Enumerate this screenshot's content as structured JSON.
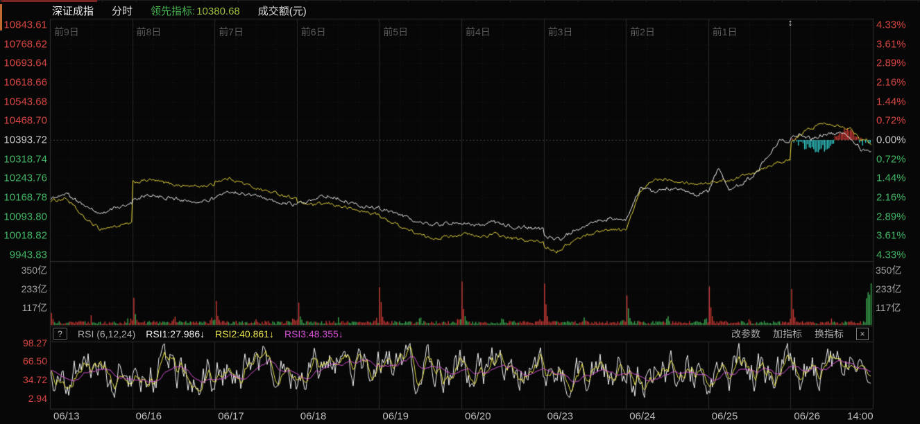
{
  "title_bar": {
    "index_name": "深证成指",
    "mode_tab": "分时",
    "leading_label": "领先指标:",
    "leading_value": "10380.68",
    "turnover_label": "成交额(元)"
  },
  "main_axis": {
    "left_prices": [
      "10843.61",
      "10768.62",
      "10693.64",
      "10618.66",
      "10543.68",
      "10468.70",
      "10393.72",
      "10318.74",
      "10243.76",
      "10168.78",
      "10093.80",
      "10018.82",
      "9943.83"
    ],
    "right_pcts": [
      "4.33%",
      "3.61%",
      "2.89%",
      "2.16%",
      "1.44%",
      "0.72%",
      "0.00%",
      "0.72%",
      "1.44%",
      "2.16%",
      "2.89%",
      "3.61%",
      "4.33%"
    ],
    "day_labels": [
      "前9日",
      "前8日",
      "前7日",
      "前6日",
      "前5日",
      "前4日",
      "前3日",
      "前2日",
      "前1日"
    ],
    "today_marker": "↕"
  },
  "volume_axis": {
    "levels": [
      "350亿",
      "233亿",
      "117亿"
    ]
  },
  "rsi_panel": {
    "help": "?",
    "name": "RSI (6,12,24)",
    "rsi1_label": "RSI1:27.986↓",
    "rsi2_label": "RSI2:40.861↓",
    "rsi3_label": "RSI3:48.355↓",
    "action_change_params": "改参数",
    "action_add_indicator": "加指标",
    "action_switch_indicator": "换指标",
    "close": "×",
    "levels": [
      "98.27",
      "66.50",
      "34.72",
      "2.94"
    ]
  },
  "x_axis": {
    "labels": [
      "06/13",
      "06/16",
      "06/17",
      "06/18",
      "06/19",
      "06/20",
      "06/23",
      "06/24",
      "06/25",
      "06/26",
      "14:00"
    ]
  },
  "colors": {
    "up_red": "#d64541",
    "down_green": "#42b564",
    "flat_white": "#c8c8c8",
    "white_line": "#f6f6f6",
    "yellow_line": "#f0df3e",
    "hist_red": "#e0413b",
    "hist_cyan": "#35d8d8",
    "vol_red": "#cf3b36",
    "vol_green": "#3cab50",
    "rsi1": "#f5f5f5",
    "rsi2": "#e9e34a",
    "rsi3": "#d44fd4",
    "accent_top": "#7c2421",
    "accent_left": "#c06a30"
  },
  "chart_data": {
    "type": "line",
    "title": "深证成指 分时 (10日)",
    "baseline_price": 10393.72,
    "price_range": [
      9943.83,
      10843.61
    ],
    "pct_range": [
      -4.33,
      4.33
    ],
    "days": [
      "06/13",
      "06/16",
      "06/17",
      "06/18",
      "06/19",
      "06/20",
      "06/23",
      "06/24",
      "06/25",
      "06/26"
    ],
    "session_end_label": "14:00",
    "leading_indicator_last": 10380.68,
    "price_anchors_pct": [
      [
        -2.2,
        -2.0,
        -2.45,
        -2.8,
        -2.55,
        -2.4
      ],
      [
        -2.3,
        -2.05,
        -2.15,
        -2.25,
        -2.3,
        -2.2
      ],
      [
        -2.2,
        -1.9,
        -2.05,
        -2.2,
        -2.35,
        -2.45
      ],
      [
        -2.4,
        -2.25,
        -2.1,
        -2.3,
        -2.5,
        -2.55
      ],
      [
        -2.6,
        -2.75,
        -3.0,
        -3.2,
        -3.15,
        -3.05
      ],
      [
        -3.05,
        -3.2,
        -3.1,
        -3.25,
        -3.3,
        -3.35
      ],
      [
        -3.65,
        -3.75,
        -3.35,
        -3.1,
        -2.95,
        -3.05
      ],
      [
        -3.05,
        -1.8,
        -1.95,
        -1.8,
        -1.9,
        -2.05,
        -1.95
      ],
      [
        -1.95,
        -1.05,
        -1.85,
        -1.7,
        -1.45,
        -1.05,
        -0.5,
        0.0,
        -0.05
      ],
      [
        0.1,
        0.25,
        0.05,
        0.18,
        0.28,
        0.2,
        0.05,
        -0.35,
        -0.5
      ]
    ],
    "leading_anchors_pct": [
      [
        -2.3,
        -2.2,
        -2.9,
        -3.35,
        -3.25,
        -3.15
      ],
      [
        -1.62,
        -1.5,
        -1.62,
        -1.72,
        -1.75,
        -1.68
      ],
      [
        -1.55,
        -1.45,
        -1.7,
        -1.9,
        -2.05,
        -2.2
      ],
      [
        -2.35,
        -2.45,
        -2.4,
        -2.55,
        -2.7,
        -2.8
      ],
      [
        -2.9,
        -3.15,
        -3.45,
        -3.7,
        -3.65,
        -3.55
      ],
      [
        -3.5,
        -3.65,
        -3.55,
        -3.7,
        -3.8,
        -3.85
      ],
      [
        -4.0,
        -4.18,
        -3.85,
        -3.6,
        -3.45,
        -3.35,
        -3.4
      ],
      [
        -3.4,
        -2.0,
        -1.5,
        -1.45,
        -1.55,
        -1.65,
        -1.6
      ],
      [
        -1.6,
        -1.55,
        -1.5,
        -1.4,
        -1.25,
        -1.1,
        -0.95,
        -0.8,
        -0.78
      ],
      [
        -0.15,
        0.2,
        0.45,
        0.6,
        0.63,
        0.55,
        0.4,
        0.05,
        -0.13
      ]
    ],
    "today_flow_histogram_anchors_pct": [
      0.12,
      -0.15,
      -0.3,
      -0.35,
      -0.3,
      0.1,
      0.42,
      0.3,
      -0.12,
      -0.06
    ],
    "volume": {
      "unit": "亿",
      "ticks": [
        350,
        233,
        117
      ],
      "open_spike_peaks": [
        130,
        330,
        300,
        295,
        300,
        290,
        305,
        300,
        310,
        330
      ],
      "closing_burst": 260
    },
    "rsi": {
      "range": [
        2.94,
        98.27
      ],
      "last_values": {
        "RSI1": 27.986,
        "RSI2": 40.861,
        "RSI3": 48.355
      },
      "params": [
        6,
        12,
        24
      ]
    }
  }
}
